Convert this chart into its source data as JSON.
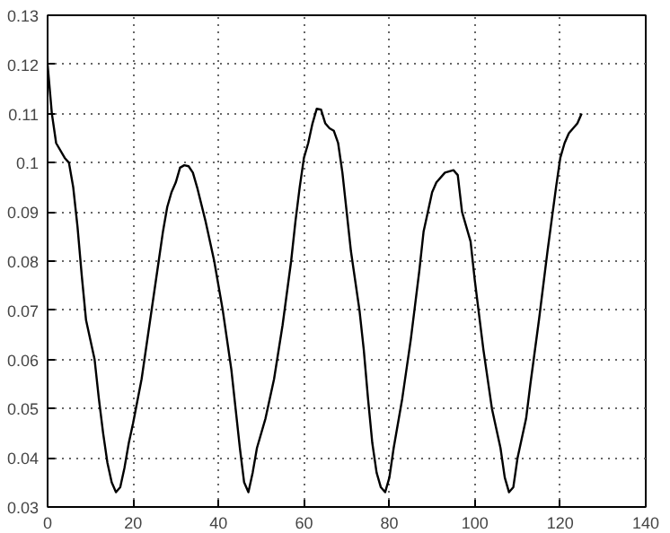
{
  "chart_data": {
    "type": "line",
    "series": [
      {
        "color": "#000000",
        "x": [
          0,
          1,
          2,
          4,
          5,
          6,
          7,
          8,
          9,
          11,
          12,
          13,
          14,
          15,
          16,
          17,
          18,
          19,
          20,
          22,
          24,
          26,
          27,
          28,
          29,
          30,
          31,
          32,
          33,
          34,
          35,
          37,
          39,
          41,
          43,
          44,
          45,
          46,
          47,
          48,
          49,
          51,
          53,
          55,
          57,
          58,
          59,
          60,
          61,
          62,
          63,
          64,
          65,
          66,
          67,
          68,
          69,
          70,
          71,
          73,
          74,
          75,
          76,
          77,
          78,
          79,
          80,
          81,
          83,
          85,
          87,
          88,
          89,
          90,
          91,
          93,
          95,
          96,
          97,
          98,
          99,
          100,
          102,
          104,
          106,
          107,
          108,
          109,
          110,
          112,
          113,
          115,
          117,
          119,
          120,
          121,
          122,
          123,
          124,
          125
        ],
        "values": [
          0.12,
          0.11,
          0.104,
          0.101,
          0.1,
          0.095,
          0.087,
          0.077,
          0.068,
          0.06,
          0.052,
          0.045,
          0.039,
          0.035,
          0.033,
          0.034,
          0.038,
          0.043,
          0.047,
          0.056,
          0.068,
          0.08,
          0.086,
          0.091,
          0.094,
          0.096,
          0.099,
          0.0995,
          0.0993,
          0.098,
          0.095,
          0.088,
          0.08,
          0.07,
          0.058,
          0.05,
          0.042,
          0.035,
          0.033,
          0.037,
          0.042,
          0.048,
          0.056,
          0.067,
          0.08,
          0.088,
          0.095,
          0.101,
          0.104,
          0.108,
          0.111,
          0.1108,
          0.108,
          0.107,
          0.1065,
          0.104,
          0.098,
          0.09,
          0.082,
          0.07,
          0.062,
          0.052,
          0.043,
          0.037,
          0.034,
          0.033,
          0.036,
          0.042,
          0.052,
          0.064,
          0.078,
          0.086,
          0.09,
          0.094,
          0.096,
          0.098,
          0.0985,
          0.0975,
          0.09,
          0.087,
          0.084,
          0.076,
          0.062,
          0.05,
          0.042,
          0.036,
          0.033,
          0.034,
          0.04,
          0.048,
          0.055,
          0.068,
          0.082,
          0.095,
          0.101,
          0.104,
          0.106,
          0.107,
          0.108,
          0.11
        ]
      }
    ],
    "xlim": [
      0,
      140
    ],
    "xticks": [
      0,
      20,
      40,
      60,
      80,
      100,
      120,
      140
    ],
    "ylim": [
      0.03,
      0.13
    ],
    "yticks": [
      0.03,
      0.04,
      0.05,
      0.06,
      0.07,
      0.08,
      0.09,
      0.1,
      0.11,
      0.12,
      0.13
    ],
    "grid": true,
    "line_style": "solid",
    "marker": "none"
  }
}
